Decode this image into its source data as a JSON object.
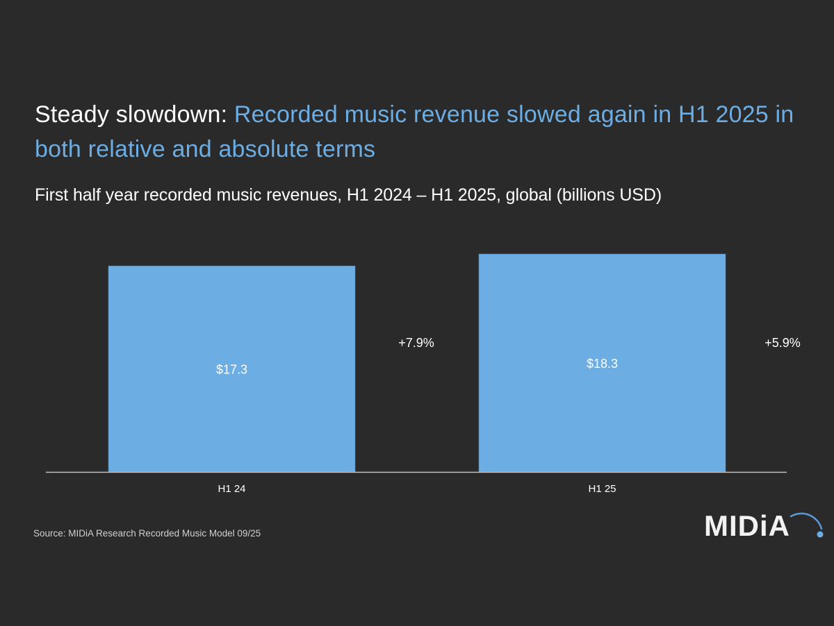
{
  "header": {
    "title_lead": "Steady slowdown:",
    "title_rest": "Recorded music revenue slowed again in H1 2025 in both relative and absolute terms",
    "subtitle": "First half year recorded music revenues, H1 2024 – H1 2025, global (billions USD)"
  },
  "colors": {
    "background": "#2a2a2a",
    "bar": "#6cade3",
    "title_accent": "#6cade3",
    "axis": "#bfbfbf",
    "logo_arc": "#5b9bd5"
  },
  "chart_data": {
    "type": "bar",
    "title": "First half year recorded music revenues, H1 2024 – H1 2025, global (billions USD)",
    "xlabel": "",
    "ylabel": "",
    "categories": [
      "H1 24",
      "H1 25"
    ],
    "values": [
      17.3,
      18.3
    ],
    "value_labels": [
      "$17.3",
      "$18.3"
    ],
    "growth_labels": [
      "+7.9%",
      "+5.9%"
    ],
    "growth_values": [
      7.9,
      5.9
    ],
    "ylim": [
      0,
      18.3
    ],
    "grid": false,
    "legend": "none",
    "unit": "billions USD"
  },
  "footer": {
    "source": "Source: MIDiA Research Recorded Music Model 09/25",
    "logo_text": "MIDiA"
  }
}
